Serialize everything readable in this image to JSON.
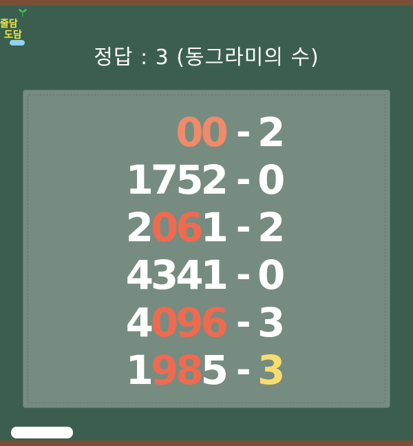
{
  "logo": {
    "line1": "줄담",
    "line2": "도담"
  },
  "title": "정답 : 3 (동그라미의 수)",
  "rows": [
    {
      "pre": "",
      "mid": "00",
      "post": "",
      "dash": "-",
      "answer": "2"
    },
    {
      "pre": "1752",
      "mid": "",
      "post": "",
      "dash": "-",
      "answer": "0"
    },
    {
      "pre": "2",
      "mid": "06",
      "post": "1",
      "dash": "-",
      "answer": "2"
    },
    {
      "pre": "4341",
      "mid": "",
      "post": "",
      "dash": "-",
      "answer": "0"
    },
    {
      "pre": "4",
      "mid": "096",
      "post": "",
      "dash": "-",
      "answer": "3"
    },
    {
      "pre": "1",
      "mid": "98",
      "post": "5",
      "dash": "-",
      "answer": "3"
    }
  ],
  "colors": {
    "board": "#3c5e4e",
    "panel": "#768c80",
    "highlight": "#f06a50",
    "answer_highlight": "#f7dd6c",
    "frame": "#7a4f37"
  }
}
